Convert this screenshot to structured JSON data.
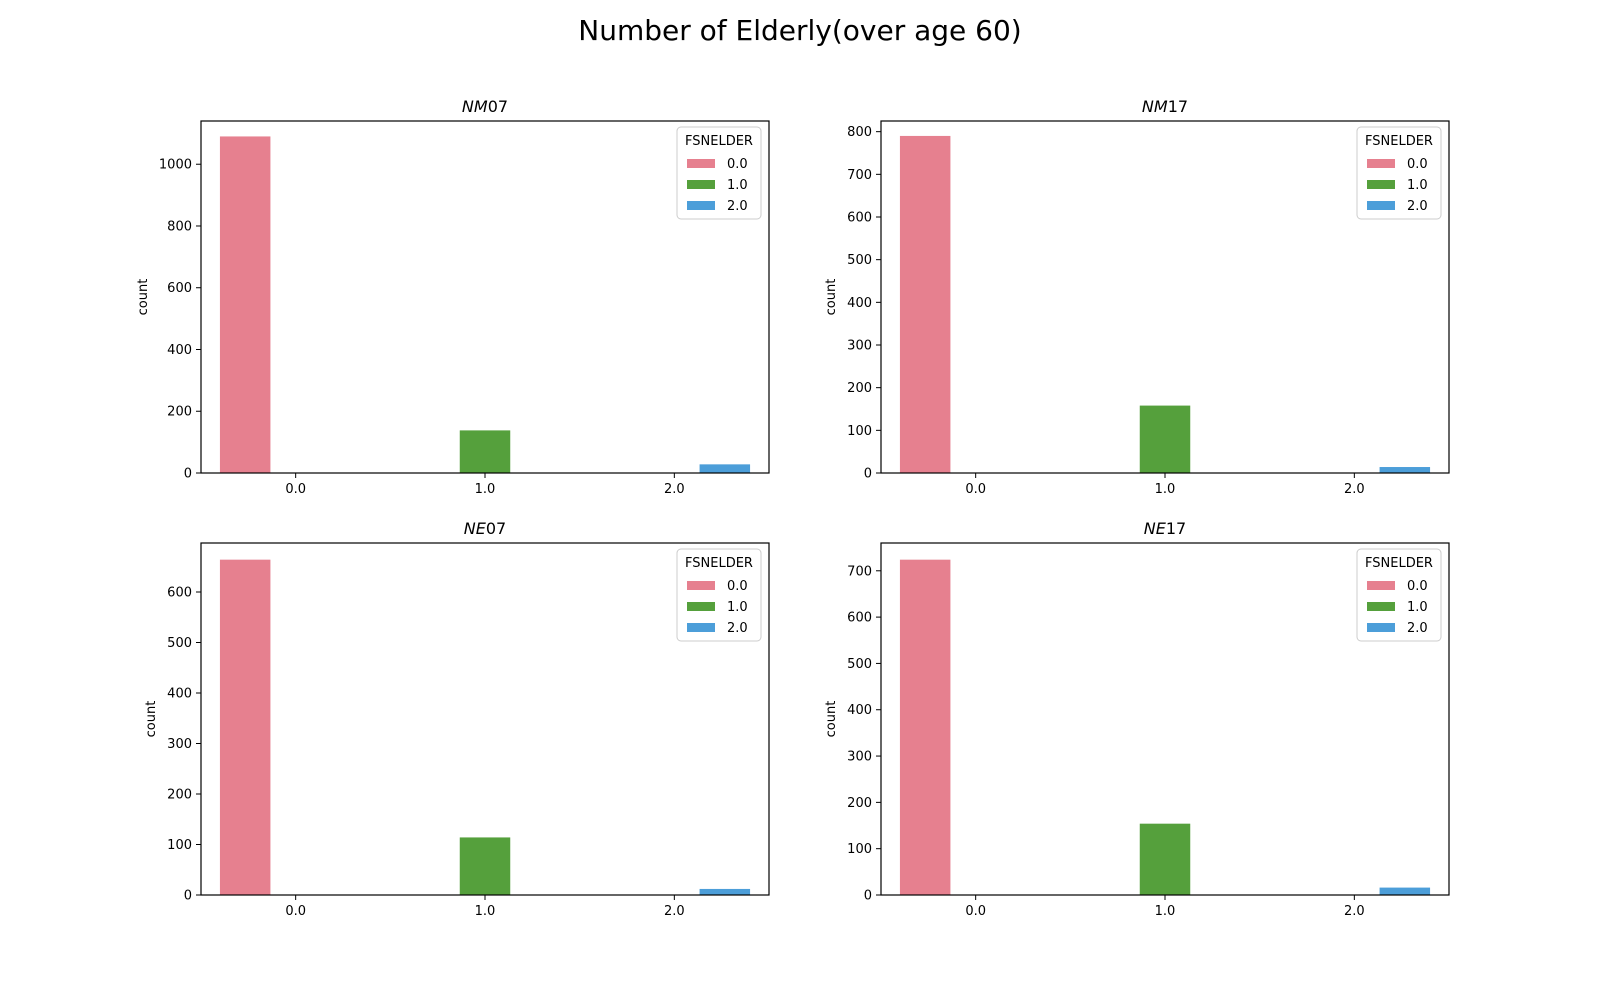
{
  "figure_title": "Number of Elderly(over age 60)",
  "chart_data": [
    {
      "type": "bar",
      "title_italic": "NM",
      "title_rest": "07",
      "ylabel": "count",
      "xlabel": "",
      "categories": [
        "0.0",
        "1.0",
        "2.0"
      ],
      "legend_title": "FSNELDER",
      "legend_position": "top-right",
      "ylim": [
        0,
        1140
      ],
      "yticks": [
        0,
        200,
        400,
        600,
        800,
        1000
      ],
      "series": [
        {
          "name": "0.0",
          "color": "#E6808F",
          "values": [
            1090,
            0,
            0
          ]
        },
        {
          "name": "1.0",
          "color": "#55A03C",
          "values": [
            0,
            138,
            0
          ]
        },
        {
          "name": "2.0",
          "color": "#4C9ED9",
          "values": [
            0,
            0,
            28
          ]
        }
      ]
    },
    {
      "type": "bar",
      "title_italic": "NM",
      "title_rest": "17",
      "ylabel": "count",
      "xlabel": "",
      "categories": [
        "0.0",
        "1.0",
        "2.0"
      ],
      "legend_title": "FSNELDER",
      "legend_position": "top-right",
      "ylim": [
        0,
        825
      ],
      "yticks": [
        0,
        100,
        200,
        300,
        400,
        500,
        600,
        700,
        800
      ],
      "series": [
        {
          "name": "0.0",
          "color": "#E6808F",
          "values": [
            790,
            0,
            0
          ]
        },
        {
          "name": "1.0",
          "color": "#55A03C",
          "values": [
            0,
            158,
            0
          ]
        },
        {
          "name": "2.0",
          "color": "#4C9ED9",
          "values": [
            0,
            0,
            14
          ]
        }
      ]
    },
    {
      "type": "bar",
      "title_italic": "NE",
      "title_rest": "07",
      "ylabel": "count",
      "xlabel": "",
      "categories": [
        "0.0",
        "1.0",
        "2.0"
      ],
      "legend_title": "FSNELDER",
      "legend_position": "top-right",
      "ylim": [
        0,
        697
      ],
      "yticks": [
        0,
        100,
        200,
        300,
        400,
        500,
        600
      ],
      "series": [
        {
          "name": "0.0",
          "color": "#E6808F",
          "values": [
            664,
            0,
            0
          ]
        },
        {
          "name": "1.0",
          "color": "#55A03C",
          "values": [
            0,
            114,
            0
          ]
        },
        {
          "name": "2.0",
          "color": "#4C9ED9",
          "values": [
            0,
            0,
            12
          ]
        }
      ]
    },
    {
      "type": "bar",
      "title_italic": "NE",
      "title_rest": "17",
      "ylabel": "count",
      "xlabel": "",
      "categories": [
        "0.0",
        "1.0",
        "2.0"
      ],
      "legend_title": "FSNELDER",
      "legend_position": "top-right",
      "ylim": [
        0,
        760
      ],
      "yticks": [
        0,
        100,
        200,
        300,
        400,
        500,
        600,
        700
      ],
      "series": [
        {
          "name": "0.0",
          "color": "#E6808F",
          "values": [
            724,
            0,
            0
          ]
        },
        {
          "name": "1.0",
          "color": "#55A03C",
          "values": [
            0,
            154,
            0
          ]
        },
        {
          "name": "2.0",
          "color": "#4C9ED9",
          "values": [
            0,
            0,
            16
          ]
        }
      ]
    }
  ]
}
